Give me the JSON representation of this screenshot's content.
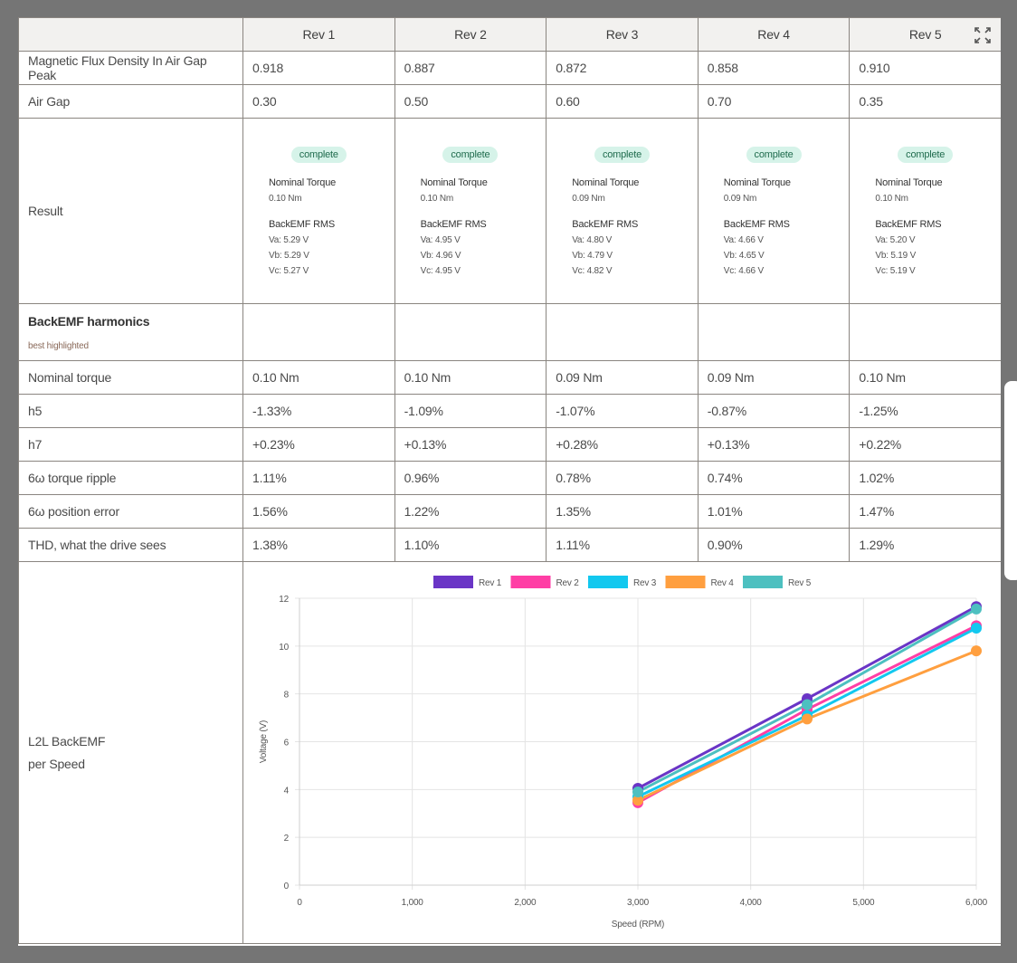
{
  "columns": [
    "Rev 1",
    "Rev 2",
    "Rev 3",
    "Rev 4",
    "Rev 5"
  ],
  "rows": {
    "flux": {
      "label": "Magnetic Flux Density In Air Gap Peak",
      "values": [
        "0.918",
        "0.887",
        "0.872",
        "0.858",
        "0.910"
      ]
    },
    "airgap": {
      "label": "Air Gap",
      "values": [
        "0.30",
        "0.50",
        "0.60",
        "0.70",
        "0.35"
      ]
    }
  },
  "result": {
    "label": "Result",
    "status": "complete",
    "torque_label": "Nominal Torque",
    "backemf_label": "BackEMF RMS",
    "cells": [
      {
        "torque": "0.10 Nm",
        "va": "Va: 5.29 V",
        "vb": "Vb: 5.29 V",
        "vc": "Vc: 5.27 V"
      },
      {
        "torque": "0.10 Nm",
        "va": "Va: 4.95 V",
        "vb": "Vb: 4.96 V",
        "vc": "Vc: 4.95 V"
      },
      {
        "torque": "0.09 Nm",
        "va": "Va: 4.80 V",
        "vb": "Vb: 4.79 V",
        "vc": "Vc: 4.82 V"
      },
      {
        "torque": "0.09 Nm",
        "va": "Va: 4.66 V",
        "vb": "Vb: 4.65 V",
        "vc": "Vc: 4.66 V"
      },
      {
        "torque": "0.10 Nm",
        "va": "Va: 5.20 V",
        "vb": "Vb: 5.19 V",
        "vc": "Vc: 5.19 V"
      }
    ]
  },
  "harmonics": {
    "title": "BackEMF harmonics",
    "subtitle": "best highlighted",
    "rows": [
      {
        "label": "Nominal torque",
        "values": [
          "0.10 Nm",
          "0.10 Nm",
          "0.09 Nm",
          "0.09 Nm",
          "0.10 Nm"
        ],
        "best": 4
      },
      {
        "label": "h5",
        "values": [
          "-1.33%",
          "-1.09%",
          "-1.07%",
          "-0.87%",
          "-1.25%"
        ],
        "best": -1
      },
      {
        "label": "h7",
        "values": [
          "+0.23%",
          "+0.13%",
          "+0.28%",
          "+0.13%",
          "+0.22%"
        ],
        "best": -1
      },
      {
        "label": "6ω torque ripple",
        "values": [
          "1.11%",
          "0.96%",
          "0.78%",
          "0.74%",
          "1.02%"
        ],
        "best": 3
      },
      {
        "label": "6ω position error",
        "values": [
          "1.56%",
          "1.22%",
          "1.35%",
          "1.01%",
          "1.47%"
        ],
        "best": 3
      },
      {
        "label": "THD, what the drive sees",
        "values": [
          "1.38%",
          "1.10%",
          "1.11%",
          "0.90%",
          "1.29%"
        ],
        "best": 3
      }
    ]
  },
  "chart_label_line1": "L2L BackEMF",
  "chart_label_line2": "per Speed",
  "icons": {
    "expand": "expand-icon"
  },
  "chart_data": {
    "type": "line",
    "xlabel": "Speed (RPM)",
    "ylabel": "Voltage (V)",
    "xlim": [
      0,
      6000
    ],
    "ylim": [
      0,
      12
    ],
    "xticks": [
      "0",
      "1,000",
      "2,000",
      "3,000",
      "4,000",
      "5,000",
      "6,000"
    ],
    "yticks": [
      "0",
      "2",
      "4",
      "6",
      "8",
      "10",
      "12"
    ],
    "grid": true,
    "legend": "top",
    "x": [
      3000,
      4500,
      6000
    ],
    "series": [
      {
        "name": "Rev 1",
        "color": "#6a35c6",
        "values": [
          4.05,
          7.8,
          11.65
        ]
      },
      {
        "name": "Rev 2",
        "color": "#ff3ea5",
        "values": [
          3.45,
          7.35,
          10.85
        ]
      },
      {
        "name": "Rev 3",
        "color": "#12c8ef",
        "values": [
          3.7,
          7.1,
          10.75
        ]
      },
      {
        "name": "Rev 4",
        "color": "#ff9f3f",
        "values": [
          3.55,
          6.95,
          9.8
        ]
      },
      {
        "name": "Rev 5",
        "color": "#4dc0c0",
        "values": [
          3.9,
          7.55,
          11.55
        ]
      }
    ]
  }
}
